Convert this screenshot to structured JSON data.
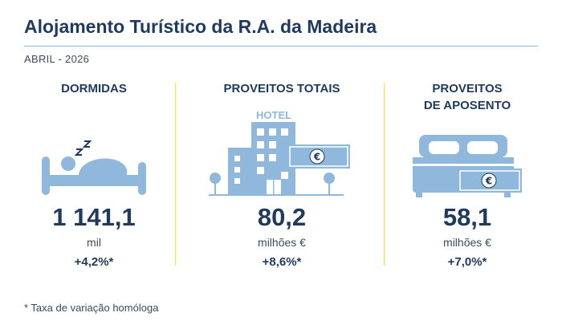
{
  "header": {
    "title": "Alojamento Turístico da R.A. da Madeira",
    "period": "ABRIL - 2026"
  },
  "indicators": [
    {
      "label": "DORMIDAS",
      "icon": "sleeping-person-icon",
      "value": "1 141,1",
      "unit": "mil",
      "change": "+4,2%*"
    },
    {
      "label": "PROVEITOS TOTAIS",
      "icon": "hotel-building-icon",
      "hotel_sign": "HOTEL",
      "currency": "€",
      "value": "80,2",
      "unit": "milhões €",
      "change": "+8,6%*"
    },
    {
      "label_line1": "PROVEITOS",
      "label_line2": "DE APOSENTO",
      "icon": "bed-with-banknote-icon",
      "currency": "€",
      "value": "58,1",
      "unit": "milhões €",
      "change": "+7,0%*"
    }
  ],
  "footnote": "* Taxa de variação homóloga",
  "colors": {
    "dark_blue": "#1f3a5c",
    "icon_blue": "#8fb8dc",
    "separator": "#f0d878"
  }
}
